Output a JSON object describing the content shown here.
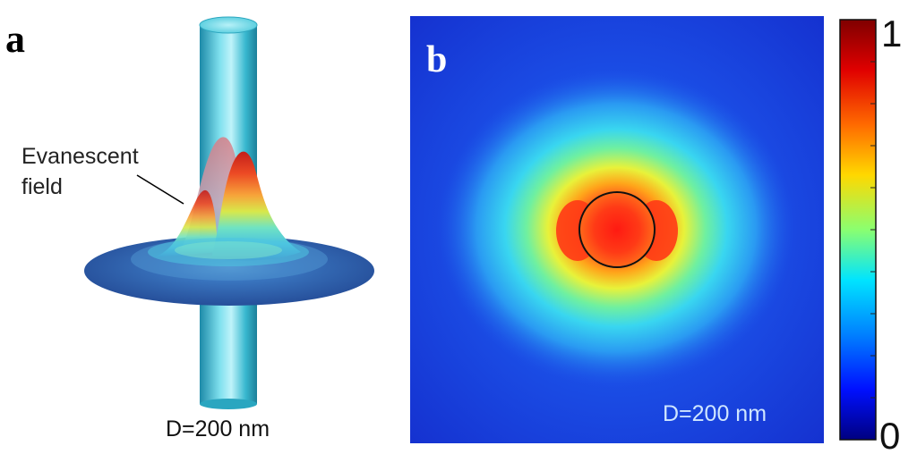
{
  "panel_a": {
    "label": "a",
    "annotation": "Evanescent\nfield",
    "annotation_line1": "Evanescent",
    "annotation_line2": "field",
    "diameter_label": "D=200 nm"
  },
  "panel_b": {
    "label": "b",
    "diameter_label": "D=200 nm",
    "colorbar": {
      "max_label": "1",
      "min_label": "0",
      "min": 0,
      "max": 1,
      "colormap": "jet"
    }
  },
  "colors": {
    "background_blue": "#1a3ad6",
    "fiber_cyan": "#3fc6da",
    "disk_blue": "#2b5aa8",
    "hot_red": "#e8211c"
  }
}
